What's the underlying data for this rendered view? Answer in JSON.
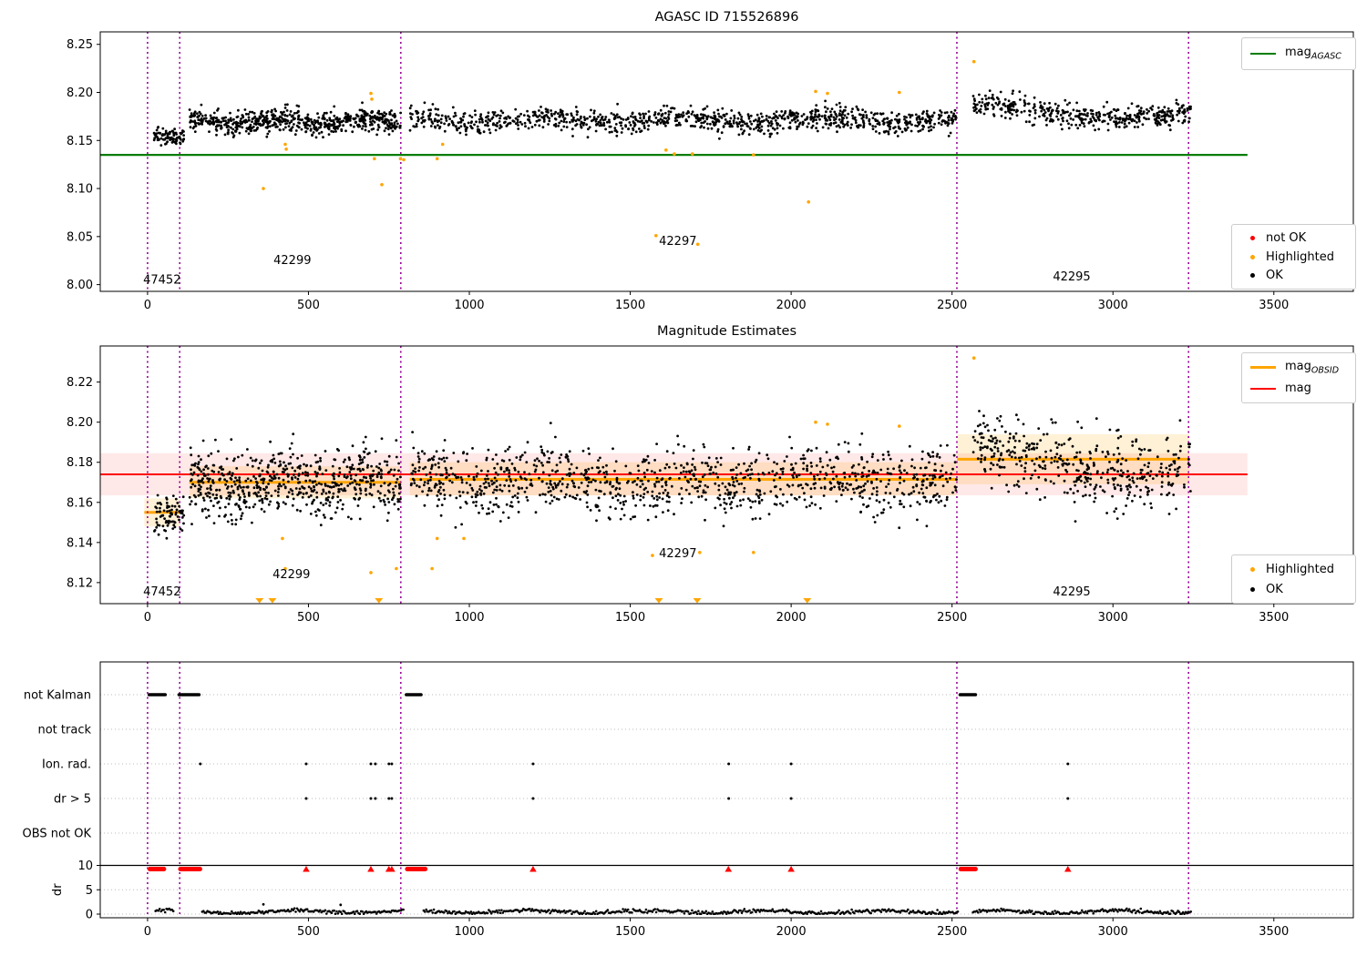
{
  "colors": {
    "purple": "#990099",
    "green": "#007d00",
    "red": "#ff0000",
    "orange": "#ffa500",
    "black": "#000000",
    "grid": "#bbbbbb",
    "band_red": "rgba(255,0,0,0.09)",
    "band_orange": "rgba(255,165,0,0.16)"
  },
  "figure": {
    "top": {
      "title": "AGASC ID 715526896",
      "line_legend": [
        {
          "main": "mag",
          "sub": "AGASC",
          "color": "#007d00",
          "thick": false
        }
      ],
      "marker_legend": [
        {
          "label": "not OK",
          "color": "#ff0000"
        },
        {
          "label": "Highlighted",
          "color": "#ffa500"
        },
        {
          "label": "OK",
          "color": "#000000"
        }
      ]
    },
    "middle": {
      "title": "Magnitude Estimates",
      "line_legend": [
        {
          "main": "mag",
          "sub": "OBSID",
          "color": "#ffa500",
          "thick": true
        },
        {
          "main": "mag",
          "sub": "",
          "color": "#ff0000",
          "thick": false
        }
      ],
      "marker_legend": [
        {
          "label": "Highlighted",
          "color": "#ffa500"
        },
        {
          "label": "OK",
          "color": "#000000"
        }
      ]
    },
    "bottom": {
      "ylabel": "dr"
    }
  },
  "chart_data": [
    {
      "type": "scatter",
      "title": "AGASC ID 715526896",
      "xlim": [
        -147,
        3747
      ],
      "ylim": [
        7.993,
        8.263
      ],
      "xticks": [
        0,
        500,
        1000,
        1500,
        2000,
        2500,
        3000,
        3500
      ],
      "yticks": [
        8.0,
        8.05,
        8.1,
        8.15,
        8.2,
        8.25
      ],
      "mag_agasc": 8.135,
      "mag_line_extent": [
        -147,
        3418
      ],
      "vlines": [
        0,
        100,
        787,
        2515,
        3235
      ],
      "clusters": [
        {
          "x0": 20,
          "x1": 115,
          "n": 80,
          "mean": 8.1555,
          "sd": 0.0048,
          "amp": 0.001,
          "period": 200,
          "seed": 11
        },
        {
          "x0": 130,
          "x1": 787,
          "n": 640,
          "mean": 8.1702,
          "sd": 0.0058,
          "amp": 0.0026,
          "period": 280,
          "seed": 12
        },
        {
          "x0": 815,
          "x1": 2514,
          "n": 1060,
          "mean": 8.1712,
          "sd": 0.0058,
          "amp": 0.0032,
          "period": 430,
          "seed": 13
        },
        {
          "x0": 2566,
          "x1": 3242,
          "n": 430,
          "mean": 8.18,
          "sd": 0.0062,
          "amp": 0.007,
          "period": 900,
          "seed": 14
        }
      ],
      "highlighted": [
        [
          360,
          8.1
        ],
        [
          428,
          8.146
        ],
        [
          431,
          8.141
        ],
        [
          694,
          8.199
        ],
        [
          697,
          8.193
        ],
        [
          705,
          8.131
        ],
        [
          728,
          8.104
        ],
        [
          786,
          8.131
        ],
        [
          796,
          8.13
        ],
        [
          900,
          8.131
        ],
        [
          917,
          8.146
        ],
        [
          1580,
          8.051
        ],
        [
          1611,
          8.14
        ],
        [
          1637,
          8.136
        ],
        [
          1693,
          8.136
        ],
        [
          1710,
          8.042
        ],
        [
          1883,
          8.135
        ],
        [
          2054,
          8.086
        ],
        [
          2076,
          8.201
        ],
        [
          2113,
          8.199
        ],
        [
          2336,
          8.2
        ],
        [
          2568,
          8.232
        ]
      ],
      "annotations": [
        {
          "text": "47452",
          "x": 45,
          "y": 8.005
        },
        {
          "text": "42299",
          "x": 450,
          "y": 8.025
        },
        {
          "text": "42297",
          "x": 1648,
          "y": 8.045
        },
        {
          "text": "42295",
          "x": 2872,
          "y": 8.008
        }
      ]
    },
    {
      "type": "scatter",
      "title": "Magnitude Estimates",
      "xlim": [
        -147,
        3747
      ],
      "ylim": [
        8.1095,
        8.238
      ],
      "xticks": [
        0,
        500,
        1000,
        1500,
        2000,
        2500,
        3000,
        3500
      ],
      "yticks": [
        8.12,
        8.14,
        8.16,
        8.18,
        8.2,
        8.22
      ],
      "mag": 8.174,
      "mag_band": [
        8.1635,
        8.1845
      ],
      "mag_line_extent": [
        -147,
        3418
      ],
      "obsid_segments": [
        {
          "x0": -10,
          "x1": 100,
          "mag": 8.155,
          "band": [
            8.148,
            8.162
          ]
        },
        {
          "x0": 130,
          "x1": 787,
          "mag": 8.17,
          "band": [
            8.162,
            8.178
          ]
        },
        {
          "x0": 815,
          "x1": 2514,
          "mag": 8.1715,
          "band": [
            8.1635,
            8.18
          ]
        },
        {
          "x0": 2516,
          "x1": 3237,
          "mag": 8.1815,
          "band": [
            8.169,
            8.194
          ]
        }
      ],
      "vlines": [
        0,
        100,
        787,
        2515,
        3235
      ],
      "clusters": [
        {
          "x0": 20,
          "x1": 115,
          "n": 80,
          "mean": 8.154,
          "sd": 0.0062,
          "amp": 0.001,
          "period": 200,
          "seed": 21
        },
        {
          "x0": 130,
          "x1": 787,
          "n": 640,
          "mean": 8.1695,
          "sd": 0.0082,
          "amp": 0.0026,
          "period": 280,
          "seed": 22
        },
        {
          "x0": 815,
          "x1": 2514,
          "n": 1060,
          "mean": 8.1705,
          "sd": 0.0082,
          "amp": 0.0032,
          "period": 430,
          "seed": 23
        },
        {
          "x0": 2566,
          "x1": 3242,
          "n": 430,
          "mean": 8.181,
          "sd": 0.0092,
          "amp": 0.0075,
          "period": 900,
          "seed": 24
        }
      ],
      "highlighted": [
        [
          419,
          8.142
        ],
        [
          428,
          8.127
        ],
        [
          694,
          8.125
        ],
        [
          773,
          8.127
        ],
        [
          884,
          8.127
        ],
        [
          900,
          8.142
        ],
        [
          983,
          8.142
        ],
        [
          1569,
          8.1335
        ],
        [
          1716,
          8.135
        ],
        [
          1883,
          8.135
        ],
        [
          2076,
          8.2
        ],
        [
          2113,
          8.199
        ],
        [
          2336,
          8.198
        ],
        [
          2568,
          8.232
        ]
      ],
      "clipped_triangles_x": [
        348,
        388,
        719,
        1589,
        1708,
        2050
      ],
      "annotations": [
        {
          "text": "47452",
          "x": 45,
          "y": 8.1155
        },
        {
          "text": "42299",
          "x": 447,
          "y": 8.124
        },
        {
          "text": "42297",
          "x": 1648,
          "y": 8.1345
        },
        {
          "text": "42295",
          "x": 2872,
          "y": 8.1155
        }
      ]
    },
    {
      "type": "flags",
      "xlim": [
        -147,
        3747
      ],
      "xticks": [
        0,
        500,
        1000,
        1500,
        2000,
        2500,
        3000,
        3500
      ],
      "rows": [
        "not Kalman",
        "not track",
        "Ion. rad.",
        "dr > 5",
        "OBS not OK"
      ],
      "dr_ticks": [
        10,
        5,
        0
      ],
      "ylabel": "dr",
      "vlines": [
        0,
        100,
        787,
        2515,
        3235
      ],
      "not_kalman_segments": [
        [
          0,
          60
        ],
        [
          93,
          165
        ],
        [
          799,
          855
        ],
        [
          2520,
          2578
        ]
      ],
      "not_track_x": [],
      "ion_rad_x": [
        164,
        493,
        694,
        708,
        750,
        759,
        1198,
        1806,
        2000,
        2860
      ],
      "dr_gt5_x": [
        493,
        694,
        708,
        750,
        759,
        1198,
        1806,
        2000,
        2860
      ],
      "obs_not_ok_x": [],
      "dr_hline": 10,
      "dr10_red_segments": [
        [
          0,
          58
        ],
        [
          95,
          170
        ],
        [
          800,
          870
        ],
        [
          2520,
          2580
        ]
      ],
      "dr10_red_triangles_x": [
        493,
        694,
        750,
        759,
        1198,
        1805,
        2000,
        2860
      ],
      "dr_trace_ranges": [
        [
          25,
          80
        ],
        [
          170,
          795
        ],
        [
          858,
          2518
        ],
        [
          2565,
          3242
        ]
      ],
      "dr_trace_seed": 31,
      "dr_outliers": [
        [
          360,
          2.0
        ],
        [
          600,
          1.9
        ]
      ]
    }
  ]
}
